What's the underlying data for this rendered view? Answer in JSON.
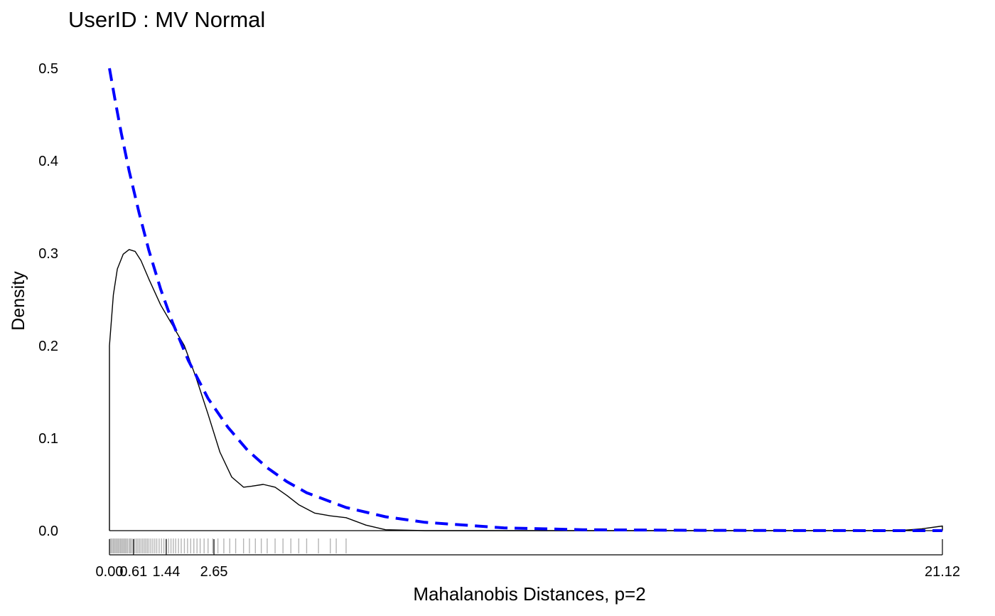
{
  "title": "UserID : MV Normal",
  "chart_data": {
    "type": "line",
    "title": "UserID : MV Normal",
    "xlabel": "Mahalanobis Distances, p=2",
    "ylabel": "Density",
    "xlim": [
      0.0,
      21.12
    ],
    "ylim": [
      0.0,
      0.5
    ],
    "x_ticks": [
      0.0,
      0.61,
      1.44,
      2.65,
      21.12
    ],
    "x_tick_labels": [
      "0.00",
      "0.61",
      "1.44",
      "2.65",
      "21.12"
    ],
    "y_ticks": [
      0.0,
      0.1,
      0.2,
      0.3,
      0.4,
      0.5
    ],
    "y_tick_labels": [
      "0.0",
      "0.1",
      "0.2",
      "0.3",
      "0.4",
      "0.5"
    ],
    "grid": false,
    "series": [
      {
        "style": "solid",
        "color": "#000000",
        "x": [
          0.0,
          0.0,
          0.1,
          0.2,
          0.35,
          0.5,
          0.65,
          0.8,
          1.0,
          1.3,
          1.6,
          1.9,
          2.2,
          2.5,
          2.8,
          3.1,
          3.4,
          3.6,
          3.9,
          4.2,
          4.5,
          4.8,
          5.2,
          5.6,
          6.0,
          6.5,
          7.0,
          8.0,
          9.0,
          10.0,
          12.0,
          14.0,
          16.0,
          18.0,
          20.0,
          20.6,
          21.12,
          21.12
        ],
        "y": [
          0.0,
          0.2,
          0.255,
          0.283,
          0.299,
          0.304,
          0.302,
          0.292,
          0.272,
          0.244,
          0.222,
          0.2,
          0.165,
          0.126,
          0.085,
          0.058,
          0.047,
          0.048,
          0.05,
          0.047,
          0.038,
          0.028,
          0.019,
          0.016,
          0.014,
          0.006,
          0.001,
          0.0,
          0.0,
          0.0,
          0.0,
          0.0,
          0.0,
          0.0,
          0.0,
          0.002,
          0.005,
          0.0
        ]
      },
      {
        "style": "dashed",
        "color": "#0000ff",
        "x": [
          0.0,
          0.15,
          0.3,
          0.5,
          0.75,
          1.0,
          1.3,
          1.6,
          2.0,
          2.5,
          3.0,
          3.5,
          4.0,
          4.5,
          5.0,
          6.0,
          7.0,
          8.0,
          10.0,
          12.0,
          15.0,
          18.0,
          21.12
        ],
        "y": [
          0.5,
          0.464,
          0.43,
          0.389,
          0.344,
          0.303,
          0.261,
          0.225,
          0.184,
          0.143,
          0.112,
          0.087,
          0.068,
          0.053,
          0.041,
          0.025,
          0.015,
          0.009,
          0.003,
          0.001,
          0.0003,
          0.0001,
          0.0
        ]
      }
    ],
    "rug": [
      0.01,
      0.04,
      0.07,
      0.1,
      0.13,
      0.16,
      0.19,
      0.22,
      0.25,
      0.28,
      0.31,
      0.34,
      0.37,
      0.4,
      0.43,
      0.46,
      0.5,
      0.53,
      0.56,
      0.6,
      0.64,
      0.68,
      0.72,
      0.76,
      0.8,
      0.84,
      0.88,
      0.92,
      0.96,
      1.0,
      1.05,
      1.1,
      1.15,
      1.2,
      1.26,
      1.32,
      1.38,
      1.44,
      1.5,
      1.56,
      1.62,
      1.68,
      1.75,
      1.82,
      1.9,
      1.98,
      2.06,
      2.14,
      2.22,
      2.3,
      2.4,
      2.5,
      2.62,
      2.75,
      2.9,
      3.05,
      3.2,
      3.4,
      3.55,
      3.7,
      3.85,
      4.0,
      4.2,
      4.4,
      4.6,
      4.8,
      5.0,
      5.3,
      5.6,
      5.75,
      6.0
    ],
    "secondary_x_ticks": [
      0.0,
      0.61,
      1.44,
      2.65,
      21.12
    ]
  }
}
